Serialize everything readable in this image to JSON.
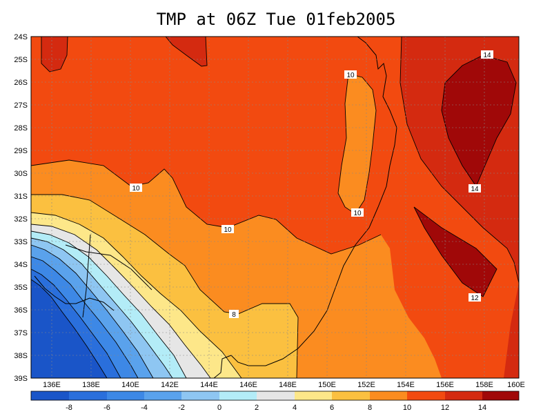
{
  "title": "TMP at 06Z Tue 01feb2005",
  "lat_labels": [
    "24S",
    "25S",
    "26S",
    "27S",
    "28S",
    "29S",
    "30S",
    "31S",
    "32S",
    "33S",
    "34S",
    "35S",
    "36S",
    "37S",
    "38S",
    "39S"
  ],
  "lon_labels": [
    "136E",
    "138E",
    "140E",
    "142E",
    "144E",
    "146E",
    "148E",
    "150E",
    "152E",
    "154E",
    "156E",
    "158E",
    "160E"
  ],
  "contour_labels": [
    "14",
    "10",
    "14",
    "10",
    "10",
    "10",
    "12",
    "8"
  ],
  "colorbar": {
    "labels": [
      "-8",
      "-6",
      "-4",
      "-2",
      "0",
      "2",
      "4",
      "6",
      "8",
      "10",
      "12",
      "14"
    ],
    "colors": [
      "#1a55c8",
      "#2a6fdc",
      "#3d88e6",
      "#5aa2ec",
      "#8ec6f2",
      "#b3ecf7",
      "#e6e6e6",
      "#fde789",
      "#fbc040",
      "#fb8c20",
      "#f24a10",
      "#d42a10",
      "#a00808"
    ]
  },
  "fill_colors": {
    "c14": "#a00808",
    "c12": "#d42a10",
    "c10": "#f24a10",
    "c8": "#fb8c20",
    "c6": "#fbc040",
    "c4": "#fde789",
    "c2": "#e6e6e6",
    "c0": "#b3ecf7",
    "cm2": "#8ec6f2",
    "cm4": "#5aa2ec",
    "cm6": "#3d88e6",
    "cm8": "#2a6fdc",
    "cm10": "#1a55c8"
  }
}
